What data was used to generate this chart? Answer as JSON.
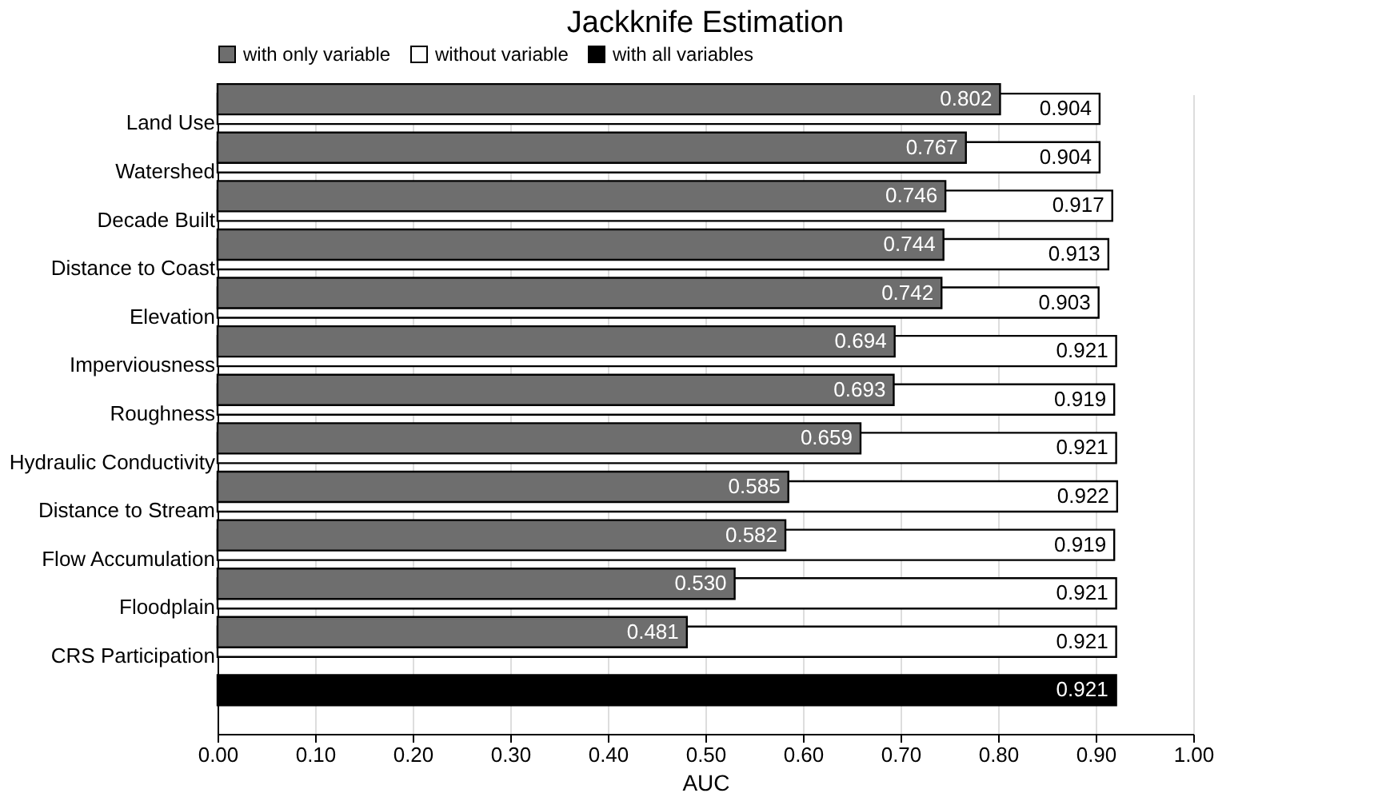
{
  "chart_data": {
    "type": "bar",
    "orientation": "horizontal",
    "title": "Jackknife Estimation",
    "xlabel": "AUC",
    "categories": [
      "Land Use",
      "Watershed",
      "Decade Built",
      "Distance to Coast",
      "Elevation",
      "Imperviousness",
      "Roughness",
      "Hydraulic Conductivity",
      "Distance to Stream",
      "Flow Accumulation",
      "Floodplain",
      "CRS Participation",
      null
    ],
    "series": [
      {
        "name": "with only variable",
        "color": "#6e6e6e",
        "values": [
          0.802,
          0.767,
          0.746,
          0.744,
          0.742,
          0.694,
          0.693,
          0.659,
          0.585,
          0.582,
          0.53,
          0.481,
          null
        ],
        "value_labels": [
          "0.802",
          "0.767",
          "0.746",
          "0.744",
          "0.742",
          "0.694",
          "0.693",
          "0.659",
          "0.585",
          "0.582",
          "0.530",
          "0.481",
          null
        ]
      },
      {
        "name": "without variable",
        "color": "#ffffff",
        "values": [
          0.904,
          0.904,
          0.917,
          0.913,
          0.903,
          0.921,
          0.919,
          0.921,
          0.922,
          0.919,
          0.921,
          0.921,
          null
        ],
        "value_labels": [
          "0.904",
          "0.904",
          "0.917",
          "0.913",
          "0.903",
          "0.921",
          "0.919",
          "0.921",
          "0.922",
          "0.919",
          "0.921",
          "0.921",
          null
        ]
      },
      {
        "name": "with all variables",
        "color": "#000000",
        "values": [
          null,
          null,
          null,
          null,
          null,
          null,
          null,
          null,
          null,
          null,
          null,
          null,
          0.921
        ],
        "value_labels": [
          null,
          null,
          null,
          null,
          null,
          null,
          null,
          null,
          null,
          null,
          null,
          null,
          "0.921"
        ]
      }
    ],
    "xlim": [
      0,
      1
    ],
    "xticks": [
      {
        "value": 0,
        "label": "0.00"
      },
      {
        "value": 0.1,
        "label": "0.10"
      },
      {
        "value": 0.2,
        "label": "0.20"
      },
      {
        "value": 0.3,
        "label": "0.30"
      },
      {
        "value": 0.4,
        "label": "0.40"
      },
      {
        "value": 0.5,
        "label": "0.50"
      },
      {
        "value": 0.6,
        "label": "0.60"
      },
      {
        "value": 0.7,
        "label": "0.70"
      },
      {
        "value": 0.8,
        "label": "0.80"
      },
      {
        "value": 0.9,
        "label": "0.90"
      },
      {
        "value": 1,
        "label": "1.00"
      }
    ],
    "grid": "x",
    "legend": "top"
  }
}
